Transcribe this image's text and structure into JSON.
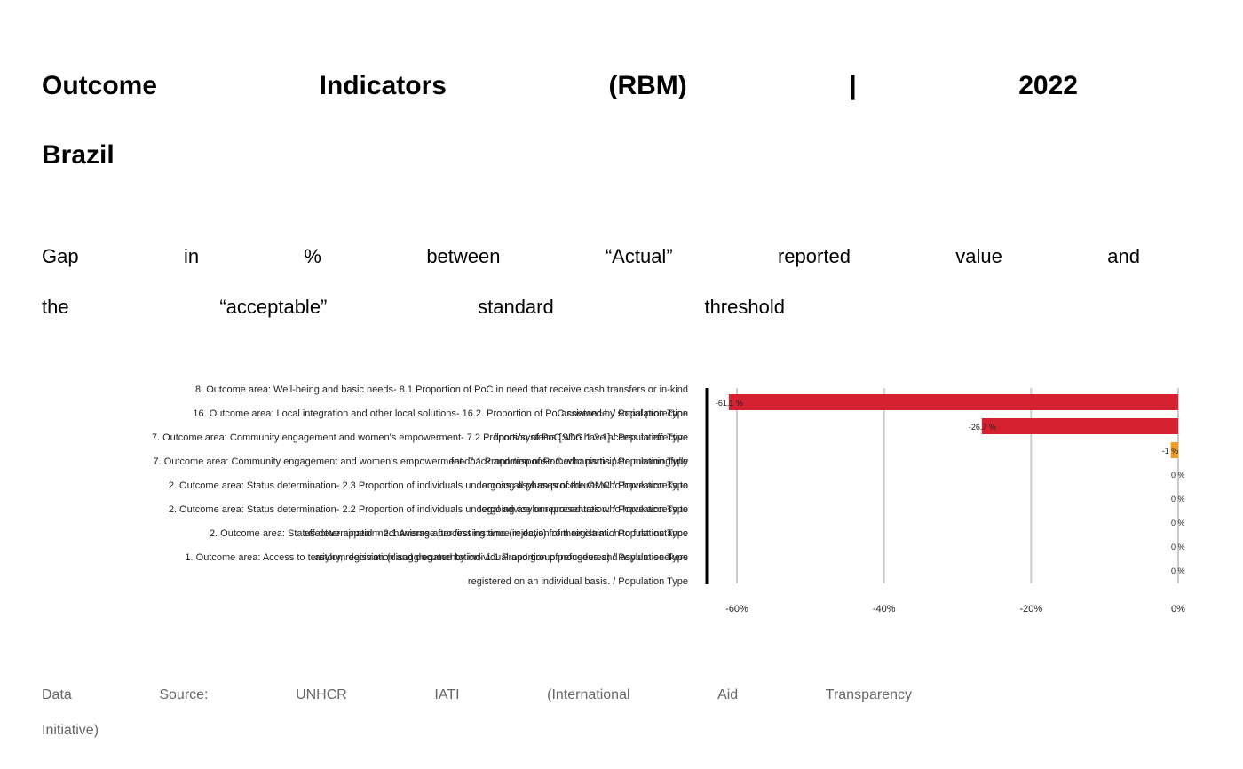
{
  "title": {
    "line1": [
      "Outcome",
      "Indicators",
      "(RBM)",
      "|",
      "2022"
    ],
    "line2": "Brazil"
  },
  "subtitle": {
    "line1": [
      "Gap",
      "in",
      "%",
      "between",
      "“Actual”",
      "reported",
      "value",
      "and"
    ],
    "line2": [
      "the",
      "“acceptable”",
      "standard",
      "threshold"
    ]
  },
  "source": {
    "line1": [
      "Data",
      "Source:",
      "UNHCR",
      "IATI",
      "(International",
      "Aid",
      "Transparency"
    ],
    "line2": "Initiative)"
  },
  "colors": {
    "negative_large": "#d62230",
    "negative_small": "#f39c1f",
    "grid": "#cccccc",
    "axis": "#000000"
  },
  "chart_data": {
    "type": "bar",
    "orientation": "horizontal",
    "categories": [
      "8. Outcome area: Well-being and basic needs- 8.1 Proportion of PoC in need that receive cash transfers or in-kind assistance. / Population Type",
      "16. Outcome area: Local integration and other local solutions- 16.2. Proportion of PoC covered by social protection floors/systems [SDG 1.3.1] / Population Type",
      "7. Outcome area: Community engagement and women's empowerment- 7.2 Proportion of PoC who have access to effective feedback and response mechanisms / Population Type",
      "7. Outcome area: Community engagement and women's empowerment- 7.1 Proportion of PoC who participate meaningfully across all phases of the OMC / Population Type",
      "2. Outcome area: Status determination- 2.3 Proportion of individuals undergoing asylum procedures who have access to legal advice or representation. / Population Type",
      "2. Outcome area: Status determination- 2.2 Proportion of individuals undergoing asylum procedures who have access to effective appeal mechanisms after first instance rejection of their claim. / Population Type",
      "2. Outcome area: Status determination- 2.1 Average processing time (in days) from registration to first instance asylum decision (disaggregated by individual and group procedures) / Population Type",
      "1. Outcome area: Access to territory, registration and documentation- 1.1 Proportion of refugees and asylum seekers registered on an individual basis. / Population Type"
    ],
    "values": [
      -61.1,
      -26.7,
      -1,
      0,
      0,
      0,
      0,
      0
    ],
    "data_labels": [
      "-61.1 %",
      "-26.7 %",
      "-1 %",
      "0 %",
      "0 %",
      "0 %",
      "0 %",
      "0 %"
    ],
    "xlim": [
      -60,
      0
    ],
    "xticks": [
      "-60%",
      "-40%",
      "-20%",
      "0%"
    ],
    "xtick_values": [
      -60,
      -40,
      -20,
      0
    ],
    "grid": true,
    "xlabel": "",
    "ylabel": ""
  }
}
